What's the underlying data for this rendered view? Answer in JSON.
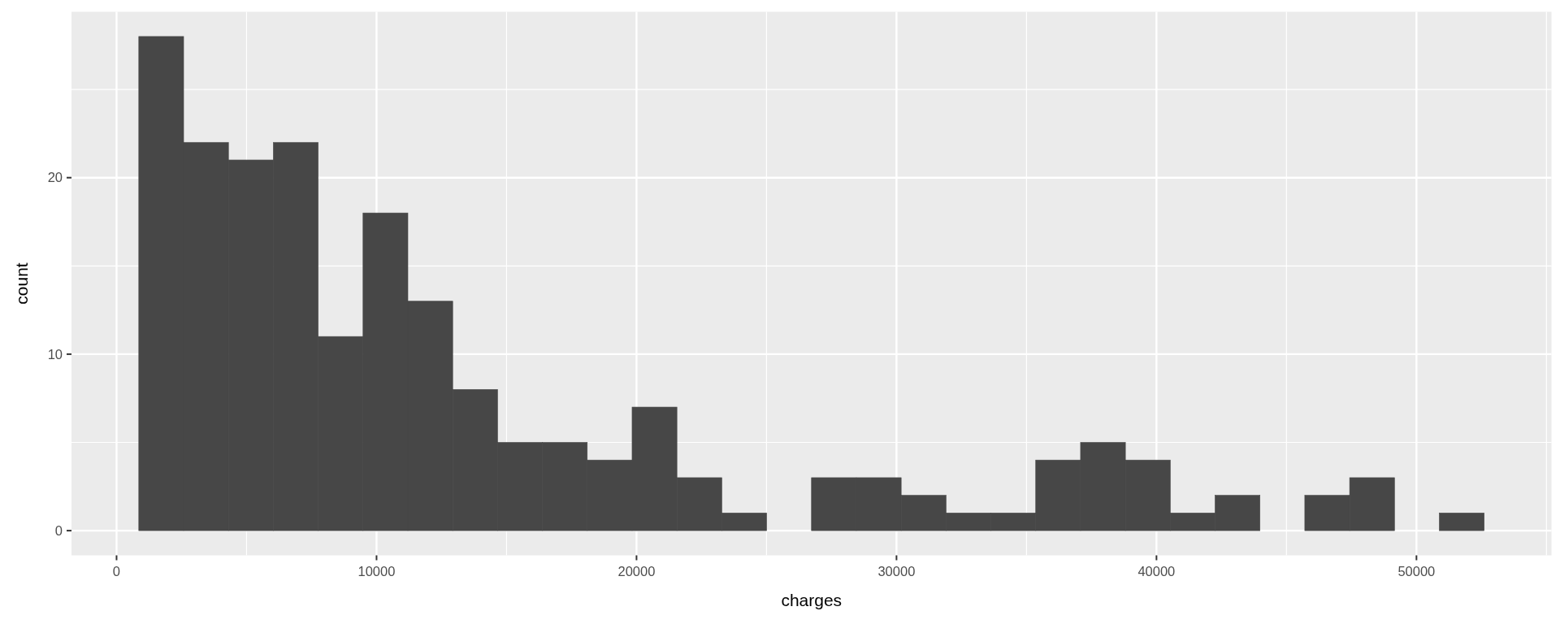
{
  "chart_data": {
    "type": "histogram",
    "xlabel": "charges",
    "ylabel": "count",
    "bins": [
      855,
      2580,
      4305,
      6030,
      7755,
      9480,
      11205,
      12930,
      14655,
      16380,
      18105,
      19830,
      21555,
      23280,
      25005,
      26730,
      28455,
      30180,
      31905,
      33630,
      35355,
      37080,
      38805,
      40530,
      42255,
      43980,
      45705,
      47430,
      49155,
      50880,
      52605
    ],
    "values": [
      28,
      22,
      21,
      22,
      11,
      18,
      13,
      8,
      5,
      5,
      4,
      7,
      3,
      1,
      0,
      3,
      3,
      2,
      1,
      1,
      4,
      5,
      4,
      1,
      2,
      0,
      2,
      3,
      0,
      1
    ],
    "color": "#474747",
    "xlim": [
      -1733,
      55193
    ],
    "ylim": [
      -1.4,
      29.4
    ],
    "xticks": [
      0,
      {
        "value": 5000,
        "label": null
      },
      10000,
      {
        "value": 15000,
        "label": null
      },
      20000,
      {
        "value": 25000,
        "label": null
      },
      30000,
      {
        "value": 35000,
        "label": null
      },
      40000,
      {
        "value": 45000,
        "label": null
      },
      50000,
      {
        "value": 55000,
        "label": null
      }
    ],
    "yticks": [
      0,
      {
        "value": 5,
        "label": null
      },
      10,
      {
        "value": 15,
        "label": null
      },
      20,
      {
        "value": 25,
        "label": null
      }
    ],
    "grid": true
  }
}
